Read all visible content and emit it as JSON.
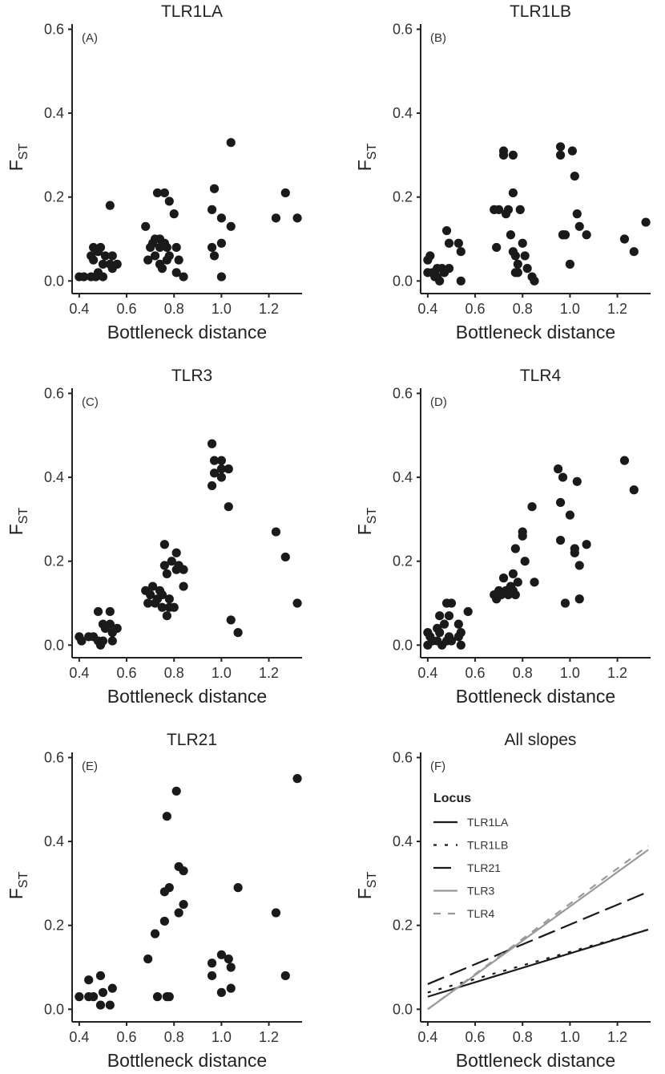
{
  "chart_data": [
    {
      "panel": "(A)",
      "title": "TLR1LA",
      "type": "scatter",
      "xlabel": "Bottleneck distance",
      "ylabel": "F",
      "ylabel_sub": "ST",
      "xlim": [
        0.37,
        1.34
      ],
      "ylim": [
        -0.03,
        0.62
      ],
      "xticks": [
        "0.4",
        "0.6",
        "0.8",
        "1.0",
        "1.2"
      ],
      "yticks": [
        "0.0",
        "0.2",
        "0.4",
        "0.6"
      ],
      "x": [
        0.4,
        0.42,
        0.45,
        0.45,
        0.46,
        0.46,
        0.47,
        0.48,
        0.48,
        0.49,
        0.5,
        0.5,
        0.51,
        0.53,
        0.53,
        0.54,
        0.54,
        0.56,
        0.68,
        0.69,
        0.7,
        0.71,
        0.72,
        0.72,
        0.73,
        0.74,
        0.74,
        0.74,
        0.75,
        0.76,
        0.76,
        0.77,
        0.77,
        0.78,
        0.78,
        0.8,
        0.81,
        0.81,
        0.82,
        0.84,
        0.96,
        0.96,
        0.97,
        0.97,
        1.0,
        1.0,
        1.0,
        1.04,
        1.04,
        1.23,
        1.27,
        1.32
      ],
      "y": [
        0.01,
        0.01,
        0.06,
        0.01,
        0.08,
        0.05,
        0.01,
        0.02,
        0.07,
        0.08,
        0.04,
        0.01,
        0.06,
        0.18,
        0.04,
        0.03,
        0.06,
        0.04,
        0.13,
        0.05,
        0.08,
        0.09,
        0.1,
        0.06,
        0.21,
        0.04,
        0.08,
        0.1,
        0.03,
        0.09,
        0.21,
        0.08,
        0.05,
        0.06,
        0.19,
        0.16,
        0.08,
        0.02,
        0.05,
        0.01,
        0.17,
        0.08,
        0.06,
        0.22,
        0.15,
        0.09,
        0.01,
        0.33,
        0.13,
        0.15,
        0.21,
        0.15
      ]
    },
    {
      "panel": "(B)",
      "title": "TLR1LB",
      "type": "scatter",
      "xlabel": "Bottleneck distance",
      "ylabel": "F",
      "ylabel_sub": "ST",
      "xlim": [
        0.37,
        1.34
      ],
      "ylim": [
        -0.03,
        0.62
      ],
      "xticks": [
        "0.4",
        "0.6",
        "0.8",
        "1.0",
        "1.2"
      ],
      "yticks": [
        "0.0",
        "0.2",
        "0.4",
        "0.6"
      ],
      "x": [
        0.4,
        0.4,
        0.41,
        0.42,
        0.43,
        0.44,
        0.44,
        0.45,
        0.46,
        0.47,
        0.48,
        0.49,
        0.49,
        0.53,
        0.54,
        0.54,
        0.68,
        0.69,
        0.7,
        0.72,
        0.72,
        0.73,
        0.74,
        0.75,
        0.76,
        0.76,
        0.76,
        0.77,
        0.77,
        0.78,
        0.78,
        0.79,
        0.8,
        0.81,
        0.82,
        0.84,
        0.85,
        0.96,
        0.96,
        0.97,
        0.97,
        0.98,
        1.0,
        1.01,
        1.02,
        1.03,
        1.04,
        1.07,
        1.23,
        1.27,
        1.32
      ],
      "y": [
        0.05,
        0.02,
        0.06,
        0.02,
        0.01,
        0.03,
        0.01,
        0.0,
        0.03,
        0.02,
        0.12,
        0.09,
        0.03,
        0.09,
        0.07,
        0.0,
        0.17,
        0.08,
        0.17,
        0.31,
        0.3,
        0.16,
        0.17,
        0.11,
        0.3,
        0.21,
        0.07,
        0.06,
        0.02,
        0.04,
        0.02,
        0.17,
        0.09,
        0.06,
        0.03,
        0.01,
        0.0,
        0.32,
        0.3,
        0.11,
        0.11,
        0.11,
        0.04,
        0.31,
        0.25,
        0.16,
        0.13,
        0.11,
        0.1,
        0.07,
        0.14
      ]
    },
    {
      "panel": "(C)",
      "title": "TLR3",
      "type": "scatter",
      "xlabel": "Bottleneck distance",
      "ylabel": "F",
      "ylabel_sub": "ST",
      "xlim": [
        0.37,
        1.34
      ],
      "ylim": [
        -0.03,
        0.62
      ],
      "xticks": [
        "0.4",
        "0.6",
        "0.8",
        "1.0",
        "1.2"
      ],
      "yticks": [
        "0.0",
        "0.2",
        "0.4",
        "0.6"
      ],
      "x": [
        0.4,
        0.41,
        0.44,
        0.46,
        0.48,
        0.48,
        0.49,
        0.5,
        0.5,
        0.51,
        0.53,
        0.53,
        0.54,
        0.54,
        0.56,
        0.68,
        0.69,
        0.7,
        0.71,
        0.72,
        0.73,
        0.74,
        0.75,
        0.75,
        0.76,
        0.76,
        0.77,
        0.77,
        0.78,
        0.78,
        0.79,
        0.8,
        0.81,
        0.81,
        0.82,
        0.84,
        0.84,
        0.96,
        0.96,
        0.97,
        0.97,
        1.0,
        1.0,
        1.0,
        1.03,
        1.03,
        1.04,
        1.07,
        1.23,
        1.27,
        1.32
      ],
      "y": [
        0.02,
        0.01,
        0.02,
        0.02,
        0.01,
        0.08,
        0.0,
        0.05,
        0.01,
        0.04,
        0.08,
        0.05,
        0.03,
        0.01,
        0.04,
        0.13,
        0.1,
        0.12,
        0.14,
        0.1,
        0.11,
        0.13,
        0.09,
        0.12,
        0.24,
        0.19,
        0.17,
        0.07,
        0.11,
        0.09,
        0.2,
        0.09,
        0.22,
        0.18,
        0.19,
        0.18,
        0.14,
        0.48,
        0.38,
        0.41,
        0.44,
        0.42,
        0.4,
        0.44,
        0.42,
        0.33,
        0.06,
        0.03,
        0.27,
        0.21,
        0.1
      ]
    },
    {
      "panel": "(D)",
      "title": "TLR4",
      "type": "scatter",
      "xlabel": "Bottleneck distance",
      "ylabel": "F",
      "ylabel_sub": "ST",
      "xlim": [
        0.37,
        1.34
      ],
      "ylim": [
        -0.03,
        0.62
      ],
      "xticks": [
        "0.4",
        "0.6",
        "0.8",
        "1.0",
        "1.2"
      ],
      "yticks": [
        "0.0",
        "0.2",
        "0.4",
        "0.6"
      ],
      "x": [
        0.4,
        0.4,
        0.41,
        0.42,
        0.44,
        0.44,
        0.45,
        0.45,
        0.46,
        0.47,
        0.48,
        0.48,
        0.49,
        0.49,
        0.5,
        0.5,
        0.53,
        0.53,
        0.54,
        0.54,
        0.57,
        0.68,
        0.69,
        0.7,
        0.71,
        0.72,
        0.73,
        0.74,
        0.75,
        0.76,
        0.76,
        0.77,
        0.77,
        0.78,
        0.8,
        0.8,
        0.81,
        0.84,
        0.85,
        0.95,
        0.96,
        0.96,
        0.97,
        0.98,
        1.0,
        1.02,
        1.02,
        1.03,
        1.04,
        1.04,
        1.07,
        1.23,
        1.27
      ],
      "y": [
        0.03,
        0.0,
        0.02,
        0.01,
        0.04,
        0.01,
        0.07,
        0.03,
        0.0,
        0.05,
        0.01,
        0.1,
        0.02,
        0.07,
        0.1,
        0.01,
        0.02,
        0.05,
        0.03,
        0.0,
        0.08,
        0.12,
        0.11,
        0.13,
        0.12,
        0.16,
        0.13,
        0.12,
        0.14,
        0.13,
        0.17,
        0.23,
        0.12,
        0.15,
        0.27,
        0.26,
        0.2,
        0.33,
        0.15,
        0.42,
        0.34,
        0.25,
        0.4,
        0.1,
        0.31,
        0.23,
        0.22,
        0.39,
        0.19,
        0.11,
        0.24,
        0.44,
        0.37
      ]
    },
    {
      "panel": "(E)",
      "title": "TLR21",
      "type": "scatter",
      "xlabel": "Bottleneck distance",
      "ylabel": "F",
      "ylabel_sub": "ST",
      "xlim": [
        0.37,
        1.34
      ],
      "ylim": [
        -0.03,
        0.62
      ],
      "xticks": [
        "0.4",
        "0.6",
        "0.8",
        "1.0",
        "1.2"
      ],
      "yticks": [
        "0.0",
        "0.2",
        "0.4",
        "0.6"
      ],
      "x": [
        0.4,
        0.44,
        0.44,
        0.46,
        0.49,
        0.49,
        0.5,
        0.53,
        0.54,
        0.69,
        0.72,
        0.73,
        0.76,
        0.76,
        0.77,
        0.77,
        0.78,
        0.78,
        0.81,
        0.82,
        0.82,
        0.84,
        0.84,
        0.96,
        0.96,
        1.0,
        1.0,
        1.03,
        1.04,
        1.04,
        1.07,
        1.23,
        1.27,
        1.32
      ],
      "y": [
        0.03,
        0.07,
        0.03,
        0.03,
        0.08,
        0.01,
        0.04,
        0.01,
        0.05,
        0.12,
        0.18,
        0.03,
        0.28,
        0.21,
        0.46,
        0.03,
        0.03,
        0.29,
        0.52,
        0.23,
        0.34,
        0.33,
        0.25,
        0.11,
        0.08,
        0.13,
        0.04,
        0.12,
        0.05,
        0.1,
        0.29,
        0.23,
        0.08,
        0.55
      ]
    },
    {
      "panel": "(F)",
      "title": "All slopes",
      "type": "line",
      "xlabel": "Bottleneck distance",
      "ylabel": "F",
      "ylabel_sub": "ST",
      "xlim": [
        0.37,
        1.34
      ],
      "ylim": [
        -0.03,
        0.62
      ],
      "xticks": [
        "0.4",
        "0.6",
        "0.8",
        "1.0",
        "1.2"
      ],
      "yticks": [
        "0.0",
        "0.2",
        "0.4",
        "0.6"
      ],
      "legend_title": "Locus",
      "legend_position": "top-left",
      "series": [
        {
          "name": "TLR1LA",
          "color": "#1a1a1a",
          "dash": "solid",
          "x": [
            0.4,
            1.33
          ],
          "y": [
            0.03,
            0.19
          ]
        },
        {
          "name": "TLR1LB",
          "color": "#1a1a1a",
          "dash": "dotted",
          "x": [
            0.4,
            1.33
          ],
          "y": [
            0.04,
            0.19
          ]
        },
        {
          "name": "TLR21",
          "color": "#1a1a1a",
          "dash": "longdash",
          "x": [
            0.4,
            1.33
          ],
          "y": [
            0.06,
            0.28
          ]
        },
        {
          "name": "TLR3",
          "color": "#999999",
          "dash": "solid",
          "x": [
            0.4,
            1.33
          ],
          "y": [
            0.0,
            0.38
          ]
        },
        {
          "name": "TLR4",
          "color": "#999999",
          "dash": "dashed",
          "x": [
            0.4,
            1.33
          ],
          "y": [
            0.0,
            0.39
          ]
        }
      ]
    }
  ]
}
